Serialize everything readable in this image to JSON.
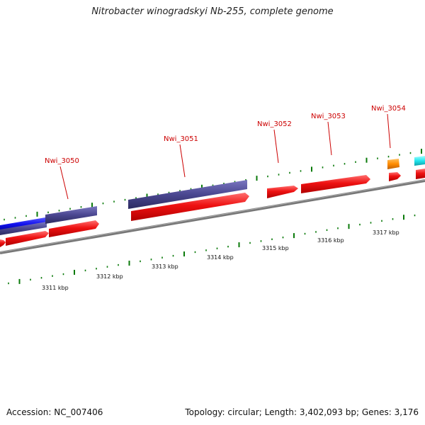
{
  "title": "Nitrobacter winogradskyi Nb-255, complete genome",
  "footer": {
    "accession": "Accession: NC_007406",
    "summary": "Topology: circular; Length: 3,402,093 bp; Genes: 3,176"
  },
  "colors": {
    "forward_gene": "#ee1111",
    "purple_feature": "#4a4790",
    "blue_feature": "#1111ee",
    "orange_feature": "#ff8c00",
    "cyan_feature": "#22e6ee",
    "backbone": "#808080",
    "tick": "#0a7a0a",
    "label": "#cc0000"
  },
  "gene_labels": [
    "Nwi_3050",
    "Nwi_3051",
    "Nwi_3052",
    "Nwi_3053",
    "Nwi_3054"
  ],
  "scale_labels": [
    "3311 kbp",
    "3312 kbp",
    "3313 kbp",
    "3314 kbp",
    "3315 kbp",
    "3316 kbp",
    "3317 kbp"
  ]
}
